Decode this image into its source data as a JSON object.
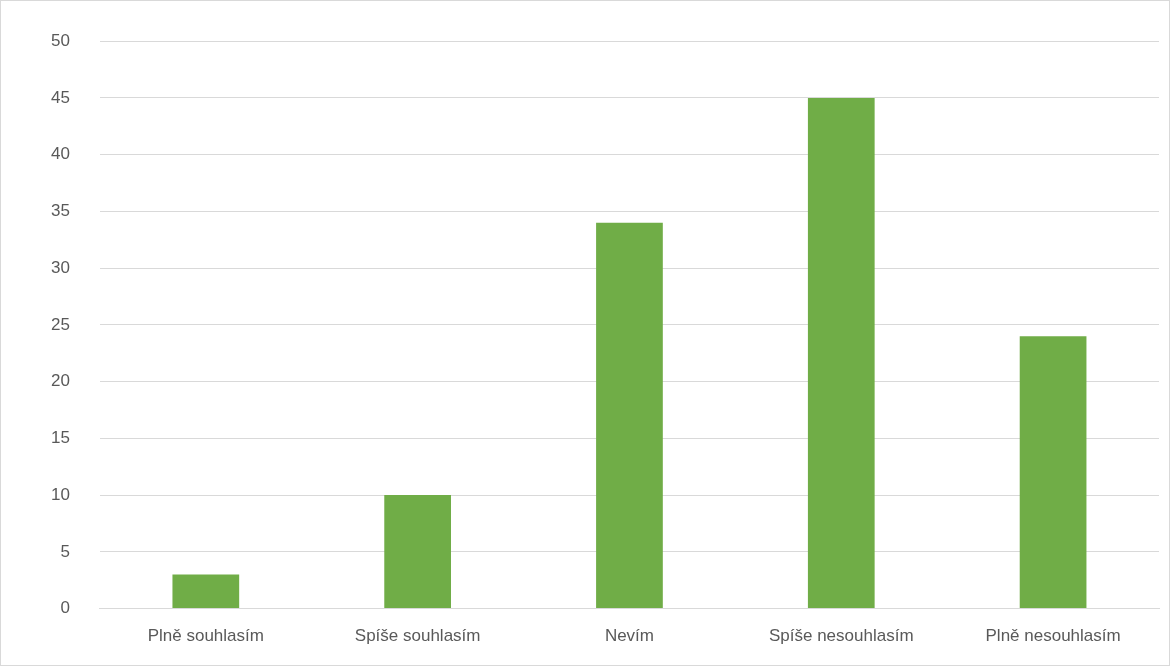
{
  "chart_data": {
    "type": "bar",
    "categories": [
      "Plně souhlasím",
      "Spíše souhlasím",
      "Nevím",
      "Spíše nesouhlasím",
      "Plně nesouhlasím"
    ],
    "values": [
      3,
      10,
      34,
      45,
      24
    ],
    "color": "#70ad47",
    "ylim": [
      0,
      50
    ],
    "yticks": [
      0,
      5,
      10,
      15,
      20,
      25,
      30,
      35,
      40,
      45,
      50
    ],
    "grid": "y",
    "legend": false
  }
}
